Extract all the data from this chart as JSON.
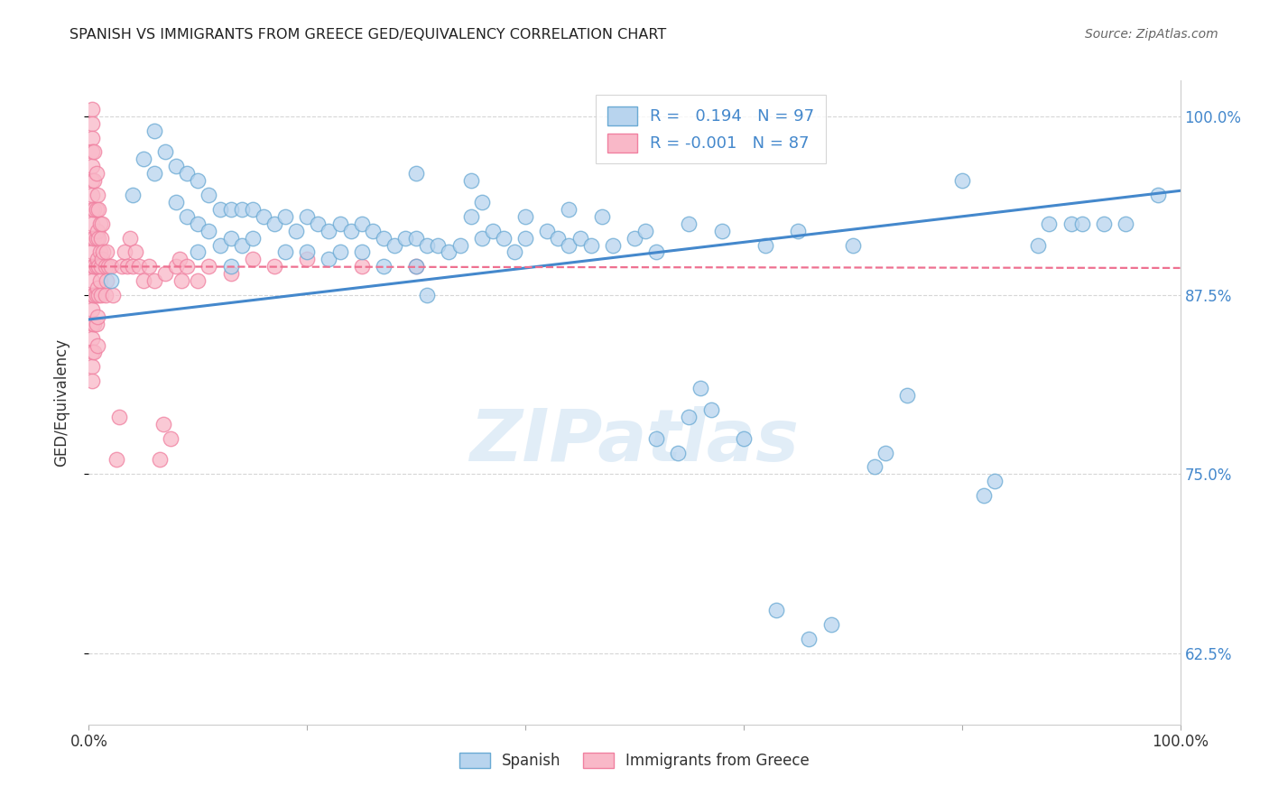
{
  "title": "SPANISH VS IMMIGRANTS FROM GREECE GED/EQUIVALENCY CORRELATION CHART",
  "source": "Source: ZipAtlas.com",
  "ylabel": "GED/Equivalency",
  "xlim": [
    0.0,
    1.0
  ],
  "ylim": [
    0.575,
    1.025
  ],
  "yticks": [
    0.625,
    0.75,
    0.875,
    1.0
  ],
  "ytick_labels": [
    "62.5%",
    "75.0%",
    "87.5%",
    "100.0%"
  ],
  "blue_R": "0.194",
  "blue_N": "97",
  "pink_R": "-0.001",
  "pink_N": "87",
  "blue_fill": "#b8d4ee",
  "pink_fill": "#f9b8c8",
  "blue_edge": "#6aaad4",
  "pink_edge": "#f080a0",
  "blue_line_color": "#4488cc",
  "pink_line_color": "#ee7090",
  "blue_scatter": [
    [
      0.02,
      0.885
    ],
    [
      0.04,
      0.945
    ],
    [
      0.05,
      0.97
    ],
    [
      0.06,
      0.99
    ],
    [
      0.06,
      0.96
    ],
    [
      0.07,
      0.975
    ],
    [
      0.08,
      0.965
    ],
    [
      0.08,
      0.94
    ],
    [
      0.09,
      0.96
    ],
    [
      0.09,
      0.93
    ],
    [
      0.1,
      0.955
    ],
    [
      0.1,
      0.925
    ],
    [
      0.1,
      0.905
    ],
    [
      0.11,
      0.945
    ],
    [
      0.11,
      0.92
    ],
    [
      0.12,
      0.935
    ],
    [
      0.12,
      0.91
    ],
    [
      0.13,
      0.935
    ],
    [
      0.13,
      0.915
    ],
    [
      0.13,
      0.895
    ],
    [
      0.14,
      0.935
    ],
    [
      0.14,
      0.91
    ],
    [
      0.15,
      0.935
    ],
    [
      0.15,
      0.915
    ],
    [
      0.16,
      0.93
    ],
    [
      0.17,
      0.925
    ],
    [
      0.18,
      0.93
    ],
    [
      0.18,
      0.905
    ],
    [
      0.19,
      0.92
    ],
    [
      0.2,
      0.93
    ],
    [
      0.2,
      0.905
    ],
    [
      0.21,
      0.925
    ],
    [
      0.22,
      0.92
    ],
    [
      0.22,
      0.9
    ],
    [
      0.23,
      0.925
    ],
    [
      0.23,
      0.905
    ],
    [
      0.24,
      0.92
    ],
    [
      0.25,
      0.925
    ],
    [
      0.25,
      0.905
    ],
    [
      0.26,
      0.92
    ],
    [
      0.27,
      0.915
    ],
    [
      0.27,
      0.895
    ],
    [
      0.28,
      0.91
    ],
    [
      0.29,
      0.915
    ],
    [
      0.3,
      0.96
    ],
    [
      0.3,
      0.915
    ],
    [
      0.3,
      0.895
    ],
    [
      0.31,
      0.91
    ],
    [
      0.31,
      0.875
    ],
    [
      0.32,
      0.91
    ],
    [
      0.33,
      0.905
    ],
    [
      0.34,
      0.91
    ],
    [
      0.35,
      0.93
    ],
    [
      0.35,
      0.955
    ],
    [
      0.36,
      0.94
    ],
    [
      0.36,
      0.915
    ],
    [
      0.37,
      0.92
    ],
    [
      0.38,
      0.915
    ],
    [
      0.39,
      0.905
    ],
    [
      0.4,
      0.93
    ],
    [
      0.4,
      0.915
    ],
    [
      0.42,
      0.92
    ],
    [
      0.43,
      0.915
    ],
    [
      0.44,
      0.935
    ],
    [
      0.44,
      0.91
    ],
    [
      0.45,
      0.915
    ],
    [
      0.46,
      0.91
    ],
    [
      0.47,
      0.93
    ],
    [
      0.48,
      0.91
    ],
    [
      0.5,
      0.915
    ],
    [
      0.51,
      0.92
    ],
    [
      0.52,
      0.905
    ],
    [
      0.52,
      0.775
    ],
    [
      0.54,
      0.765
    ],
    [
      0.55,
      0.925
    ],
    [
      0.55,
      0.79
    ],
    [
      0.56,
      0.81
    ],
    [
      0.57,
      0.795
    ],
    [
      0.58,
      0.92
    ],
    [
      0.6,
      0.775
    ],
    [
      0.62,
      0.91
    ],
    [
      0.63,
      0.655
    ],
    [
      0.65,
      0.92
    ],
    [
      0.66,
      0.635
    ],
    [
      0.68,
      0.645
    ],
    [
      0.7,
      0.91
    ],
    [
      0.72,
      0.755
    ],
    [
      0.73,
      0.765
    ],
    [
      0.75,
      0.805
    ],
    [
      0.8,
      0.955
    ],
    [
      0.82,
      0.735
    ],
    [
      0.83,
      0.745
    ],
    [
      0.87,
      0.91
    ],
    [
      0.88,
      0.925
    ],
    [
      0.9,
      0.925
    ],
    [
      0.91,
      0.925
    ],
    [
      0.93,
      0.925
    ],
    [
      0.95,
      0.925
    ],
    [
      0.98,
      0.945
    ]
  ],
  "pink_scatter": [
    [
      0.003,
      1.005
    ],
    [
      0.003,
      0.995
    ],
    [
      0.003,
      0.985
    ],
    [
      0.003,
      0.975
    ],
    [
      0.003,
      0.965
    ],
    [
      0.003,
      0.955
    ],
    [
      0.003,
      0.945
    ],
    [
      0.003,
      0.935
    ],
    [
      0.003,
      0.925
    ],
    [
      0.003,
      0.915
    ],
    [
      0.003,
      0.905
    ],
    [
      0.003,
      0.895
    ],
    [
      0.003,
      0.885
    ],
    [
      0.003,
      0.875
    ],
    [
      0.003,
      0.865
    ],
    [
      0.003,
      0.855
    ],
    [
      0.003,
      0.845
    ],
    [
      0.003,
      0.835
    ],
    [
      0.003,
      0.825
    ],
    [
      0.003,
      0.815
    ],
    [
      0.005,
      0.975
    ],
    [
      0.005,
      0.955
    ],
    [
      0.005,
      0.935
    ],
    [
      0.005,
      0.915
    ],
    [
      0.005,
      0.895
    ],
    [
      0.005,
      0.875
    ],
    [
      0.005,
      0.855
    ],
    [
      0.005,
      0.835
    ],
    [
      0.007,
      0.96
    ],
    [
      0.007,
      0.935
    ],
    [
      0.007,
      0.915
    ],
    [
      0.007,
      0.895
    ],
    [
      0.007,
      0.875
    ],
    [
      0.007,
      0.855
    ],
    [
      0.008,
      0.945
    ],
    [
      0.008,
      0.92
    ],
    [
      0.008,
      0.9
    ],
    [
      0.008,
      0.88
    ],
    [
      0.008,
      0.86
    ],
    [
      0.008,
      0.84
    ],
    [
      0.009,
      0.935
    ],
    [
      0.009,
      0.915
    ],
    [
      0.009,
      0.895
    ],
    [
      0.009,
      0.875
    ],
    [
      0.01,
      0.925
    ],
    [
      0.01,
      0.905
    ],
    [
      0.01,
      0.885
    ],
    [
      0.011,
      0.915
    ],
    [
      0.011,
      0.895
    ],
    [
      0.011,
      0.875
    ],
    [
      0.012,
      0.925
    ],
    [
      0.012,
      0.9
    ],
    [
      0.013,
      0.905
    ],
    [
      0.015,
      0.895
    ],
    [
      0.015,
      0.875
    ],
    [
      0.016,
      0.905
    ],
    [
      0.016,
      0.885
    ],
    [
      0.018,
      0.895
    ],
    [
      0.02,
      0.895
    ],
    [
      0.022,
      0.875
    ],
    [
      0.025,
      0.76
    ],
    [
      0.028,
      0.79
    ],
    [
      0.03,
      0.895
    ],
    [
      0.033,
      0.905
    ],
    [
      0.035,
      0.895
    ],
    [
      0.038,
      0.915
    ],
    [
      0.04,
      0.895
    ],
    [
      0.043,
      0.905
    ],
    [
      0.046,
      0.895
    ],
    [
      0.05,
      0.885
    ],
    [
      0.055,
      0.895
    ],
    [
      0.06,
      0.885
    ],
    [
      0.065,
      0.76
    ],
    [
      0.068,
      0.785
    ],
    [
      0.07,
      0.89
    ],
    [
      0.075,
      0.775
    ],
    [
      0.08,
      0.895
    ],
    [
      0.083,
      0.9
    ],
    [
      0.085,
      0.885
    ],
    [
      0.09,
      0.895
    ],
    [
      0.1,
      0.885
    ],
    [
      0.11,
      0.895
    ],
    [
      0.13,
      0.89
    ],
    [
      0.15,
      0.9
    ],
    [
      0.17,
      0.895
    ],
    [
      0.2,
      0.9
    ],
    [
      0.25,
      0.895
    ],
    [
      0.3,
      0.895
    ]
  ],
  "blue_trendline_x": [
    0.0,
    1.0
  ],
  "blue_trendline_y": [
    0.858,
    0.948
  ],
  "pink_trendline_x": [
    0.0,
    1.0
  ],
  "pink_trendline_y": [
    0.895,
    0.894
  ],
  "watermark": "ZIPatlas",
  "legend_labels": [
    "Spanish",
    "Immigrants from Greece"
  ],
  "background_color": "#ffffff",
  "grid_color": "#cccccc",
  "title_color": "#222222",
  "source_color": "#666666",
  "ylabel_color": "#333333",
  "tick_label_color": "#4488cc"
}
